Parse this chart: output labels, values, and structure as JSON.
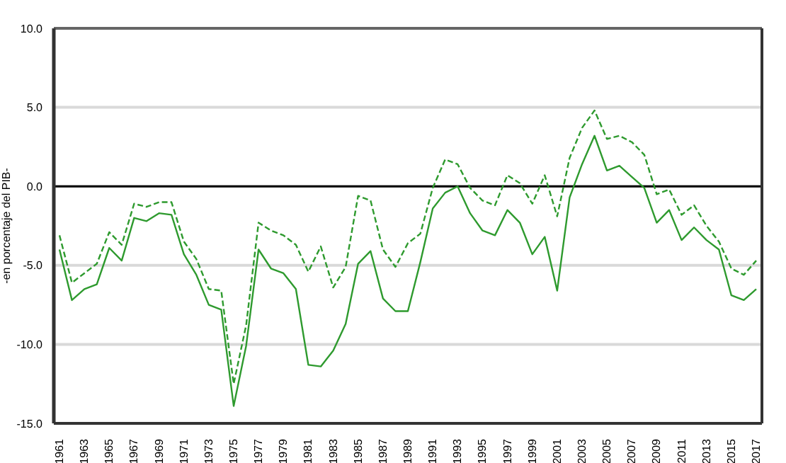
{
  "chart_data": {
    "type": "line",
    "ylabel": "-en porcentaje del PIB-",
    "categories": [
      "1961",
      null,
      "1963",
      null,
      "1965",
      null,
      "1967",
      null,
      "1969",
      null,
      "1971",
      null,
      "1973",
      null,
      "1975",
      null,
      "1977",
      null,
      "1979",
      null,
      "1981",
      null,
      "1983",
      null,
      "1985",
      null,
      "1987",
      null,
      "1989",
      null,
      "1991",
      null,
      "1993",
      null,
      "1995",
      null,
      "1997",
      null,
      "1999",
      null,
      "2001",
      null,
      "2003",
      null,
      "2005",
      null,
      "2007",
      null,
      "2009",
      null,
      "2011",
      null,
      "2013",
      null,
      "2015",
      null,
      "2017"
    ],
    "series": [
      {
        "color": "#2e9a2e",
        "line_style": "solid",
        "values": [
          -4.0,
          -7.2,
          -6.5,
          -6.2,
          -3.9,
          -4.7,
          -2.0,
          -2.2,
          -1.7,
          -1.8,
          -4.3,
          -5.6,
          -7.5,
          -7.8,
          -13.9,
          -10.1,
          -4.0,
          -5.2,
          -5.5,
          -6.5,
          -11.3,
          -11.4,
          -10.4,
          -8.7,
          -4.9,
          -4.1,
          -7.1,
          -7.9,
          -7.9,
          -4.8,
          -1.4,
          -0.4,
          0.0,
          -1.7,
          -2.8,
          -3.1,
          -1.5,
          -2.3,
          -4.3,
          -3.2,
          -6.6,
          -0.7,
          1.4,
          3.2,
          1.0,
          1.3,
          0.6,
          -0.1,
          -2.3,
          -1.5,
          -3.4,
          -2.6,
          -3.4,
          -4.0,
          -6.9,
          -7.2,
          -6.5
        ]
      },
      {
        "color": "#2e9a2e",
        "line_style": "dashed",
        "values": [
          -3.1,
          -6.1,
          -5.5,
          -4.9,
          -2.9,
          -3.7,
          -1.1,
          -1.3,
          -1.0,
          -1.0,
          -3.5,
          -4.6,
          -6.5,
          -6.6,
          -12.5,
          -8.8,
          -2.3,
          -2.8,
          -3.1,
          -3.7,
          -5.4,
          -3.8,
          -6.4,
          -5.1,
          -0.6,
          -0.9,
          -4.0,
          -5.1,
          -3.6,
          -3.0,
          -0.1,
          1.7,
          1.4,
          -0.1,
          -0.9,
          -1.2,
          0.7,
          0.2,
          -1.1,
          0.7,
          -1.9,
          1.8,
          3.7,
          4.8,
          3.0,
          3.2,
          2.8,
          2.0,
          -0.5,
          -0.2,
          -1.8,
          -1.2,
          -2.5,
          -3.5,
          -5.2,
          -5.6,
          -4.7
        ]
      }
    ],
    "ylim": [
      -15,
      10
    ],
    "yticks": [
      {
        "value": -15,
        "label": "-15.0"
      },
      {
        "value": -10,
        "label": "-10.0"
      },
      {
        "value": -5,
        "label": "-5.0"
      },
      {
        "value": 0,
        "label": "0.0"
      },
      {
        "value": 5,
        "label": "5.0"
      },
      {
        "value": 10,
        "label": "10.0"
      }
    ],
    "ref_lines": [
      {
        "axis": "y",
        "value": 0,
        "color": "#000000"
      }
    ],
    "grid": "y",
    "marker": "none"
  }
}
